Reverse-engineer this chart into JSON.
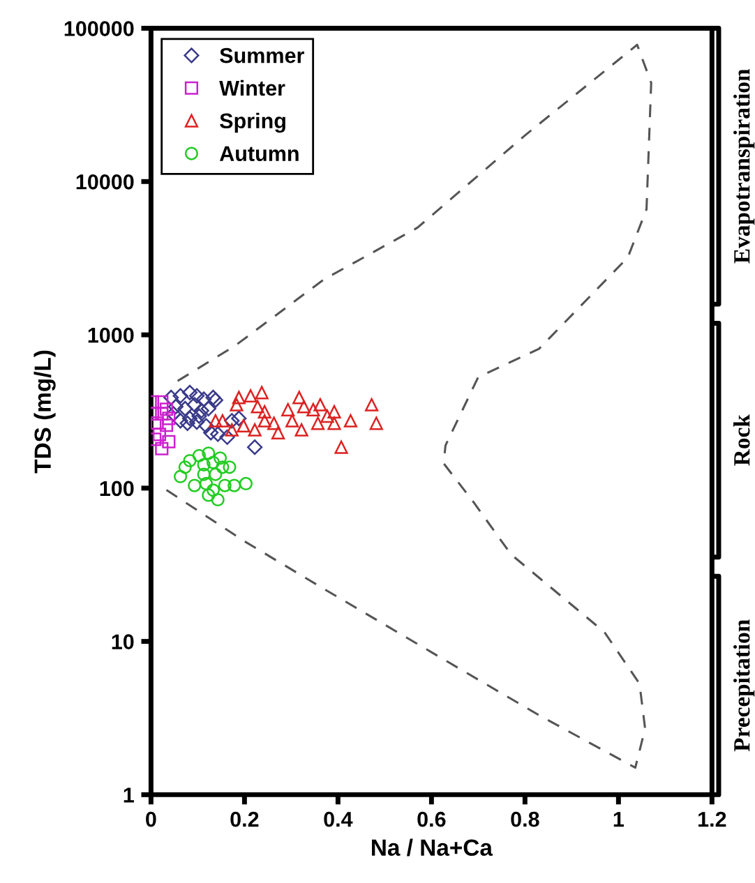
{
  "chart_data": {
    "type": "scatter",
    "xlabel": "Na / Na+Ca",
    "ylabel": "TDS (mg/L)",
    "xlim": [
      0,
      1.2
    ],
    "ylim": [
      1,
      100000
    ],
    "log": "y",
    "xticks": [
      0,
      0.2,
      0.4,
      0.6,
      0.8,
      1,
      1.2
    ],
    "yticks": [
      1,
      10,
      100,
      1000,
      10000,
      100000
    ],
    "grid": false,
    "legend": "top left",
    "annotations": [
      "Evapotranspiration",
      "Rock",
      "Precepitation"
    ],
    "series": [
      {
        "name": "Summer",
        "color": "#3a3a8a",
        "marker": "diamond",
        "x": [
          0.043,
          0.063,
          0.083,
          0.098,
          0.113,
          0.133,
          0.053,
          0.073,
          0.093,
          0.108,
          0.123,
          0.063,
          0.083,
          0.103,
          0.118,
          0.128,
          0.143,
          0.163,
          0.173,
          0.188,
          0.222,
          0.138,
          0.048,
          0.078,
          0.098
        ],
        "values": [
          390,
          400,
          420,
          400,
          380,
          390,
          340,
          330,
          350,
          320,
          330,
          275,
          285,
          295,
          255,
          230,
          225,
          215,
          275,
          285,
          185,
          375,
          305,
          265,
          270
        ]
      },
      {
        "name": "Winter",
        "color": "#cc22cc",
        "marker": "square",
        "x": [
          0.003,
          0.023,
          0.003,
          0.023,
          0.038,
          0.013,
          0.033,
          0.018,
          0.038,
          0.023,
          0.008,
          0.033
        ],
        "values": [
          365,
          365,
          305,
          305,
          285,
          266,
          257,
          224,
          201,
          181,
          208,
          327
        ]
      },
      {
        "name": "Spring",
        "color": "#dd2222",
        "marker": "triangle",
        "x": [
          0.188,
          0.213,
          0.237,
          0.183,
          0.228,
          0.138,
          0.153,
          0.173,
          0.198,
          0.222,
          0.243,
          0.263,
          0.272,
          0.293,
          0.317,
          0.327,
          0.347,
          0.362,
          0.392,
          0.322,
          0.357,
          0.392,
          0.427,
          0.407,
          0.472,
          0.482,
          0.377,
          0.302,
          0.243
        ],
        "values": [
          390,
          400,
          420,
          350,
          340,
          275,
          275,
          240,
          255,
          240,
          275,
          265,
          230,
          325,
          390,
          340,
          325,
          350,
          315,
          240,
          265,
          265,
          275,
          185,
          350,
          265,
          295,
          275,
          315
        ]
      },
      {
        "name": "Autumn",
        "color": "#22cc22",
        "marker": "circle",
        "x": [
          0.063,
          0.083,
          0.103,
          0.123,
          0.113,
          0.133,
          0.153,
          0.168,
          0.093,
          0.118,
          0.138,
          0.158,
          0.178,
          0.203,
          0.123,
          0.143,
          0.133,
          0.113,
          0.073,
          0.148
        ],
        "values": [
          119,
          151,
          163,
          169,
          142,
          147,
          137,
          137,
          104,
          107,
          123,
          104,
          104,
          107,
          90,
          84,
          97,
          123,
          137,
          157
        ]
      },
      {
        "type": "line",
        "color": "#555555",
        "marker": "none",
        "line_style": "dashed",
        "x": [
          0.057,
          0.18,
          0.37,
          0.57,
          0.8,
          1.04,
          1.07,
          1.06,
          1.02,
          0.83,
          0.7,
          0.63,
          0.626,
          0.69,
          0.77,
          0.97,
          1.045,
          1.057,
          1.036,
          0.83,
          0.6,
          0.37,
          0.2,
          0.027
        ],
        "values": [
          500,
          850,
          2300,
          5000,
          20000,
          78000,
          44000,
          6600,
          3200,
          810,
          530,
          190,
          145,
          81,
          37,
          11.5,
          5.3,
          2.7,
          1.5,
          3.3,
          8.5,
          22,
          45,
          100
        ]
      }
    ]
  }
}
